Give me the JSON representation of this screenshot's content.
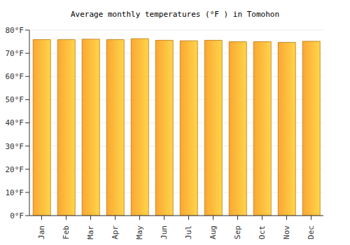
{
  "chart_data": {
    "type": "bar",
    "title": "Average monthly temperatures (°F ) in Tomohon",
    "categories": [
      "Jan",
      "Feb",
      "Mar",
      "Apr",
      "May",
      "Jun",
      "Jul",
      "Aug",
      "Sep",
      "Oct",
      "Nov",
      "Dec"
    ],
    "values": [
      75.9,
      75.9,
      76.1,
      75.9,
      76.3,
      75.6,
      75.4,
      75.6,
      75.0,
      75.0,
      74.7,
      75.2
    ],
    "color": "#fba732",
    "ylim": [
      0,
      80
    ],
    "yticks": [
      {
        "value": 0,
        "label": "0°F"
      },
      {
        "value": 10,
        "label": "10°F"
      },
      {
        "value": 20,
        "label": "20°F"
      },
      {
        "value": 30,
        "label": "30°F"
      },
      {
        "value": 40,
        "label": "40°F"
      },
      {
        "value": 50,
        "label": "50°F"
      },
      {
        "value": 60,
        "label": "60°F"
      },
      {
        "value": 70,
        "label": "70°F"
      },
      {
        "value": 80,
        "label": "80°F"
      }
    ],
    "grid": true
  }
}
